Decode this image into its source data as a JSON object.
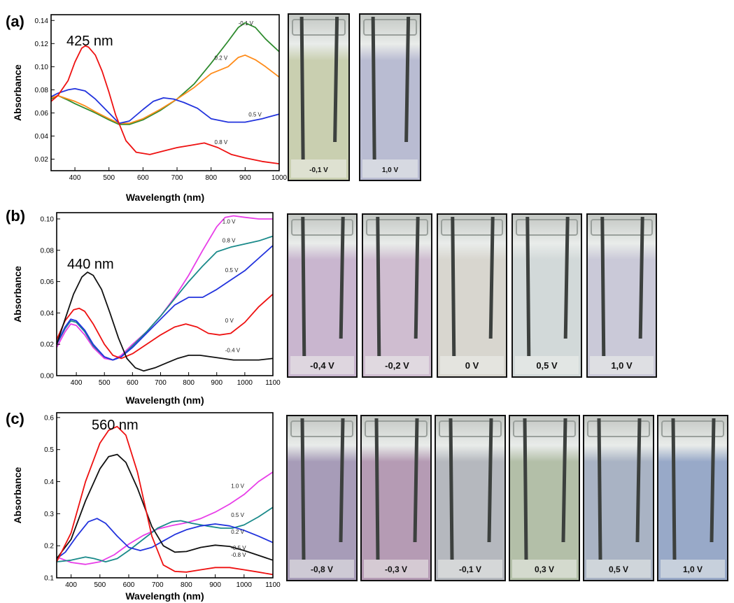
{
  "chart_data": [
    {
      "type": "line",
      "panel_label": "(a)",
      "annotation": "425 nm",
      "xlabel": "Wavelength (nm)",
      "ylabel": "Absorbance",
      "xlim": [
        330,
        1000
      ],
      "ylim": [
        0.01,
        0.145
      ],
      "xticks": [
        "400",
        "500",
        "600",
        "700",
        "800",
        "900",
        "1000"
      ],
      "yticks": [
        "0.02",
        "0.04",
        "0.06",
        "0.08",
        "0.10",
        "0.12",
        "0.14"
      ],
      "series": [
        {
          "name": "-0.1 V",
          "color": "#2e8b2e",
          "label_at": [
            880,
            0.136
          ],
          "x": [
            330,
            350,
            380,
            400,
            430,
            460,
            500,
            530,
            560,
            600,
            650,
            700,
            750,
            800,
            850,
            880,
            900,
            930,
            960,
            1000
          ],
          "y": [
            0.072,
            0.075,
            0.071,
            0.068,
            0.064,
            0.06,
            0.054,
            0.05,
            0.05,
            0.054,
            0.062,
            0.072,
            0.085,
            0.103,
            0.122,
            0.134,
            0.138,
            0.134,
            0.124,
            0.113
          ]
        },
        {
          "name": "0.2 V",
          "color": "#ff8c1a",
          "label_at": [
            810,
            0.106
          ],
          "x": [
            330,
            350,
            380,
            400,
            430,
            460,
            500,
            530,
            560,
            600,
            650,
            700,
            750,
            800,
            850,
            880,
            900,
            930,
            960,
            1000
          ],
          "y": [
            0.073,
            0.075,
            0.072,
            0.07,
            0.066,
            0.061,
            0.055,
            0.051,
            0.051,
            0.055,
            0.063,
            0.072,
            0.082,
            0.094,
            0.1,
            0.108,
            0.11,
            0.106,
            0.1,
            0.091
          ]
        },
        {
          "name": "0.5 V",
          "color": "#2233dd",
          "label_at": [
            910,
            0.057
          ],
          "x": [
            330,
            350,
            380,
            400,
            430,
            460,
            500,
            530,
            560,
            600,
            630,
            660,
            690,
            720,
            760,
            800,
            850,
            900,
            950,
            1000
          ],
          "y": [
            0.074,
            0.077,
            0.08,
            0.081,
            0.079,
            0.072,
            0.06,
            0.051,
            0.053,
            0.063,
            0.07,
            0.073,
            0.072,
            0.069,
            0.064,
            0.055,
            0.052,
            0.052,
            0.055,
            0.059
          ]
        },
        {
          "name": "0.8 V",
          "color": "#ee1111",
          "label_at": [
            810,
            0.033
          ],
          "x": [
            330,
            350,
            380,
            400,
            420,
            430,
            440,
            460,
            480,
            500,
            520,
            550,
            580,
            620,
            660,
            700,
            740,
            780,
            820,
            860,
            900,
            950,
            1000
          ],
          "y": [
            0.07,
            0.075,
            0.088,
            0.104,
            0.116,
            0.118,
            0.117,
            0.11,
            0.096,
            0.078,
            0.058,
            0.036,
            0.026,
            0.024,
            0.027,
            0.03,
            0.032,
            0.034,
            0.03,
            0.024,
            0.021,
            0.018,
            0.016
          ]
        }
      ]
    },
    {
      "type": "line",
      "panel_label": "(b)",
      "annotation": "440 nm",
      "xlabel": "Wavelength (nm)",
      "ylabel": "Absorbance",
      "xlim": [
        330,
        1100
      ],
      "ylim": [
        0.0,
        0.104
      ],
      "xticks": [
        "400",
        "500",
        "600",
        "700",
        "800",
        "900",
        "1000",
        "1100"
      ],
      "yticks": [
        "0.00",
        "0.02",
        "0.04",
        "0.06",
        "0.08",
        "0.10"
      ],
      "series": [
        {
          "name": "1.0 V",
          "color": "#e83ee8",
          "label_at": [
            920,
            0.097
          ],
          "x": [
            330,
            360,
            380,
            400,
            430,
            460,
            500,
            530,
            560,
            600,
            650,
            700,
            750,
            800,
            850,
            900,
            930,
            960,
            1000,
            1050,
            1100
          ],
          "y": [
            0.018,
            0.028,
            0.033,
            0.032,
            0.026,
            0.018,
            0.011,
            0.01,
            0.013,
            0.02,
            0.028,
            0.038,
            0.05,
            0.064,
            0.08,
            0.095,
            0.101,
            0.102,
            0.101,
            0.1,
            0.1
          ]
        },
        {
          "name": "0.8 V",
          "color": "#1a8a8a",
          "label_at": [
            920,
            0.085
          ],
          "x": [
            330,
            360,
            380,
            400,
            430,
            460,
            500,
            530,
            560,
            600,
            650,
            700,
            750,
            800,
            850,
            900,
            950,
            1000,
            1050,
            1100
          ],
          "y": [
            0.02,
            0.03,
            0.035,
            0.034,
            0.028,
            0.019,
            0.012,
            0.01,
            0.012,
            0.019,
            0.028,
            0.038,
            0.049,
            0.06,
            0.07,
            0.079,
            0.082,
            0.084,
            0.086,
            0.089
          ]
        },
        {
          "name": "0.5 V",
          "color": "#2233dd",
          "label_at": [
            930,
            0.066
          ],
          "x": [
            330,
            360,
            380,
            400,
            430,
            460,
            500,
            530,
            560,
            600,
            650,
            700,
            750,
            800,
            850,
            900,
            950,
            1000,
            1050,
            1100
          ],
          "y": [
            0.02,
            0.031,
            0.036,
            0.035,
            0.029,
            0.02,
            0.012,
            0.01,
            0.012,
            0.018,
            0.027,
            0.036,
            0.045,
            0.05,
            0.05,
            0.055,
            0.061,
            0.067,
            0.075,
            0.083
          ]
        },
        {
          "name": "0 V",
          "color": "#ee1111",
          "label_at": [
            930,
            0.034
          ],
          "x": [
            330,
            360,
            390,
            410,
            430,
            460,
            500,
            530,
            560,
            600,
            650,
            700,
            750,
            790,
            830,
            870,
            910,
            950,
            1000,
            1050,
            1100
          ],
          "y": [
            0.023,
            0.035,
            0.042,
            0.043,
            0.041,
            0.033,
            0.02,
            0.013,
            0.011,
            0.014,
            0.02,
            0.026,
            0.031,
            0.033,
            0.031,
            0.027,
            0.026,
            0.027,
            0.034,
            0.044,
            0.052
          ]
        },
        {
          "name": "-0.4 V",
          "color": "#111111",
          "label_at": [
            930,
            0.015
          ],
          "x": [
            330,
            360,
            390,
            420,
            440,
            460,
            490,
            520,
            550,
            580,
            610,
            640,
            680,
            720,
            760,
            800,
            840,
            880,
            920,
            960,
            1000,
            1050,
            1100
          ],
          "y": [
            0.02,
            0.036,
            0.052,
            0.063,
            0.066,
            0.064,
            0.055,
            0.04,
            0.024,
            0.011,
            0.005,
            0.003,
            0.005,
            0.008,
            0.011,
            0.013,
            0.013,
            0.012,
            0.011,
            0.01,
            0.01,
            0.01,
            0.011
          ]
        }
      ]
    },
    {
      "type": "line",
      "panel_label": "(c)",
      "annotation": "560 nm",
      "xlabel": "Wavelength (nm)",
      "ylabel": "Absorbance",
      "xlim": [
        350,
        1100
      ],
      "ylim": [
        0.1,
        0.615
      ],
      "xticks": [
        "400",
        "500",
        "600",
        "700",
        "800",
        "900",
        "1000",
        "1100"
      ],
      "yticks": [
        "0.1",
        "0.2",
        "0.3",
        "0.4",
        "0.5",
        "0.6"
      ],
      "series": [
        {
          "name": "1.0 V",
          "color": "#e83ee8",
          "label_at": [
            955,
            0.38
          ],
          "x": [
            350,
            400,
            450,
            500,
            550,
            600,
            650,
            700,
            750,
            800,
            850,
            900,
            950,
            1000,
            1050,
            1100
          ],
          "y": [
            0.165,
            0.148,
            0.142,
            0.15,
            0.172,
            0.205,
            0.232,
            0.252,
            0.263,
            0.272,
            0.285,
            0.305,
            0.33,
            0.36,
            0.4,
            0.43
          ]
        },
        {
          "name": "0.5 V",
          "color": "#1a8a8a",
          "label_at": [
            955,
            0.29
          ],
          "x": [
            350,
            400,
            450,
            480,
            520,
            560,
            600,
            650,
            700,
            750,
            780,
            820,
            870,
            920,
            960,
            1000,
            1050,
            1100
          ],
          "y": [
            0.15,
            0.155,
            0.165,
            0.16,
            0.15,
            0.16,
            0.185,
            0.22,
            0.255,
            0.275,
            0.278,
            0.27,
            0.262,
            0.255,
            0.255,
            0.265,
            0.29,
            0.32
          ]
        },
        {
          "name": "0.2 V",
          "color": "#2233dd",
          "label_at": [
            955,
            0.237
          ],
          "x": [
            350,
            380,
            420,
            460,
            490,
            520,
            560,
            600,
            640,
            680,
            720,
            760,
            800,
            850,
            900,
            950,
            1000,
            1050,
            1100
          ],
          "y": [
            0.16,
            0.18,
            0.23,
            0.275,
            0.285,
            0.27,
            0.23,
            0.195,
            0.185,
            0.195,
            0.215,
            0.235,
            0.25,
            0.262,
            0.268,
            0.262,
            0.248,
            0.23,
            0.21
          ]
        },
        {
          "name": "-0.5 V",
          "color": "#111111",
          "label_at": [
            955,
            0.187
          ],
          "x": [
            350,
            400,
            450,
            500,
            530,
            560,
            590,
            630,
            680,
            720,
            760,
            800,
            850,
            900,
            950,
            1000,
            1050,
            1100
          ],
          "y": [
            0.16,
            0.22,
            0.34,
            0.44,
            0.478,
            0.485,
            0.46,
            0.38,
            0.26,
            0.2,
            0.18,
            0.182,
            0.195,
            0.202,
            0.198,
            0.185,
            0.17,
            0.155
          ]
        },
        {
          "name": "-0.8 V",
          "color": "#ee1111",
          "label_at": [
            955,
            0.165
          ],
          "x": [
            350,
            400,
            450,
            500,
            530,
            560,
            590,
            630,
            680,
            720,
            760,
            800,
            850,
            900,
            950,
            1000,
            1050,
            1100
          ],
          "y": [
            0.15,
            0.24,
            0.4,
            0.52,
            0.56,
            0.572,
            0.545,
            0.43,
            0.23,
            0.14,
            0.12,
            0.118,
            0.125,
            0.132,
            0.132,
            0.125,
            0.118,
            0.11
          ]
        }
      ]
    }
  ],
  "cuvettes": [
    {
      "row": "(a)",
      "labels": [
        "-0,1 V",
        "1,0 V"
      ],
      "tints": [
        "#c9cfb0",
        "#b9bcd2"
      ]
    },
    {
      "row": "(b)",
      "labels": [
        "-0,4 V",
        "-0,2 V",
        "0 V",
        "0,5 V",
        "1,0 V"
      ],
      "tints": [
        "#c9b6cf",
        "#cfbdd0",
        "#d8d6cf",
        "#d2d9d9",
        "#cac9d8"
      ]
    },
    {
      "row": "(c)",
      "labels": [
        "-0,8 V",
        "-0,3 V",
        "-0,1 V",
        "0,3 V",
        "0,5 V",
        "1,0 V"
      ],
      "tints": [
        "#a79cb8",
        "#b59bb4",
        "#b5b8be",
        "#b3bfa8",
        "#a9b3c4",
        "#98a9c8"
      ]
    }
  ]
}
